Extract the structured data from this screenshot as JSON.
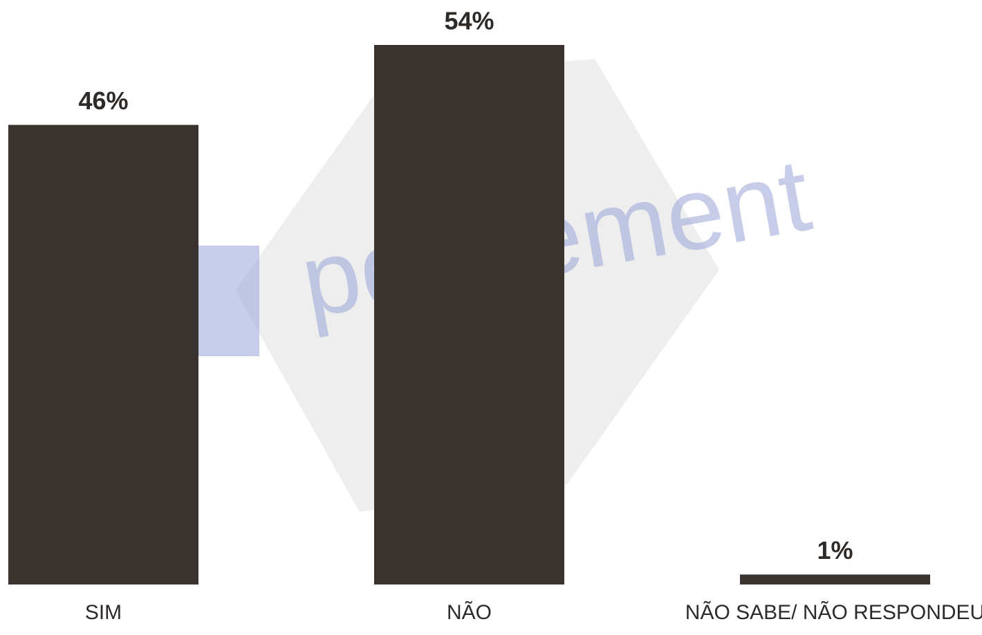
{
  "chart_data": {
    "type": "bar",
    "categories": [
      "SIM",
      "NÃO",
      "NÃO SABE/ NÃO RESPONDEU"
    ],
    "values": [
      46,
      54,
      1
    ],
    "value_labels": [
      "46%",
      "54%",
      "1%"
    ],
    "color": "#3a3330",
    "watermark": "pdfelement"
  }
}
